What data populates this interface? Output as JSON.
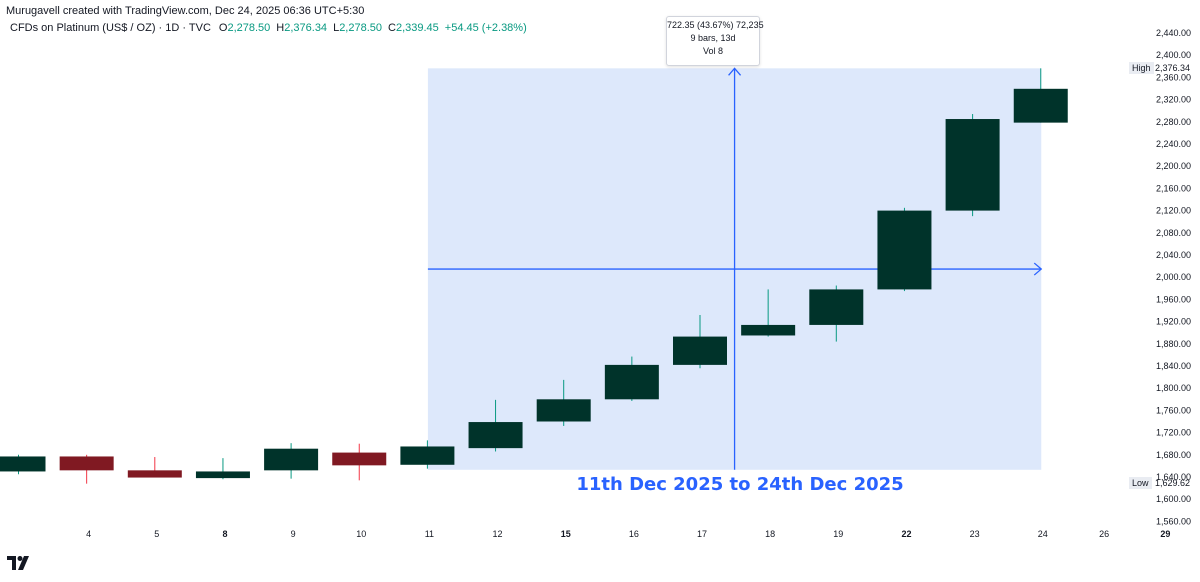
{
  "header": {
    "credit": "Murugavell created with TradingView.com, Dec 24, 2025 06:36 UTC+5:30",
    "symbol": "CFDs on Platinum (US$ / OZ) · 1D · TVC",
    "open_key": "O",
    "open_value": "2,278.50",
    "high_key": "H",
    "high_value": "2,376.34",
    "low_key": "L",
    "low_value": "2,278.50",
    "close_key": "C",
    "close_value": "2,339.45",
    "change": "+54.45 (+2.38%)"
  },
  "measure_tooltip": {
    "line1": "722.35 (43.67%) 72,235",
    "line2": "9 bars, 13d",
    "line3": "Vol 8"
  },
  "range_caption": "11th Dec 2025 to 24th Dec 2025",
  "price_scale": {
    "high_label": "High",
    "high_value": "2,376.34",
    "low_label": "Low",
    "low_value": "1,629.62"
  },
  "colors": {
    "up": "#00332a",
    "down": "#801922",
    "up_wick": "#089981",
    "down_wick": "#f23645",
    "measure_fill": "#dde8fb",
    "measure_line": "#2962ff",
    "axis_text": "#131722"
  },
  "chart_data": {
    "type": "candlestick",
    "ylim": [
      1540,
      2460
    ],
    "y_ticks": [
      "2,440.00",
      "2,400.00",
      "2,360.00",
      "2,320.00",
      "2,280.00",
      "2,240.00",
      "2,200.00",
      "2,160.00",
      "2,120.00",
      "2,080.00",
      "2,040.00",
      "2,000.00",
      "1,960.00",
      "1,920.00",
      "1,880.00",
      "1,840.00",
      "1,800.00",
      "1,760.00",
      "1,720.00",
      "1,680.00",
      "1,640.00",
      "1,600.00",
      "1,560.00"
    ],
    "x_ticks": [
      {
        "label": "4",
        "bold": false
      },
      {
        "label": "5",
        "bold": false
      },
      {
        "label": "8",
        "bold": true
      },
      {
        "label": "9",
        "bold": false
      },
      {
        "label": "10",
        "bold": false
      },
      {
        "label": "11",
        "bold": false
      },
      {
        "label": "12",
        "bold": false
      },
      {
        "label": "15",
        "bold": true
      },
      {
        "label": "16",
        "bold": false
      },
      {
        "label": "17",
        "bold": false
      },
      {
        "label": "18",
        "bold": false
      },
      {
        "label": "19",
        "bold": false
      },
      {
        "label": "22",
        "bold": true
      },
      {
        "label": "23",
        "bold": false
      },
      {
        "label": "24",
        "bold": false
      },
      {
        "label": "26",
        "bold": false
      },
      {
        "label": "29",
        "bold": true
      }
    ],
    "candles": [
      {
        "date": "3",
        "open": 1650,
        "high": 1680,
        "low": 1645,
        "close": 1677
      },
      {
        "date": "4",
        "open": 1677,
        "high": 1680,
        "low": 1628,
        "close": 1652
      },
      {
        "date": "5",
        "open": 1652,
        "high": 1676,
        "low": 1640,
        "close": 1639
      },
      {
        "date": "8",
        "open": 1638,
        "high": 1674,
        "low": 1636,
        "close": 1650
      },
      {
        "date": "9",
        "open": 1652,
        "high": 1701,
        "low": 1637,
        "close": 1691
      },
      {
        "date": "10",
        "open": 1684,
        "high": 1700,
        "low": 1634,
        "close": 1661
      },
      {
        "date": "11",
        "open": 1662,
        "high": 1706,
        "low": 1655,
        "close": 1695
      },
      {
        "date": "12",
        "open": 1692,
        "high": 1779,
        "low": 1686,
        "close": 1739
      },
      {
        "date": "15",
        "open": 1740,
        "high": 1815,
        "low": 1732,
        "close": 1780
      },
      {
        "date": "16",
        "open": 1780,
        "high": 1857,
        "low": 1777,
        "close": 1842
      },
      {
        "date": "17",
        "open": 1842,
        "high": 1932,
        "low": 1836,
        "close": 1893
      },
      {
        "date": "18",
        "open": 1895,
        "high": 1978,
        "low": 1893,
        "close": 1914
      },
      {
        "date": "19",
        "open": 1914,
        "high": 1985,
        "low": 1884,
        "close": 1978
      },
      {
        "date": "22",
        "open": 1978,
        "high": 2125,
        "low": 1975,
        "close": 2120
      },
      {
        "date": "23",
        "open": 2120,
        "high": 2294,
        "low": 2110,
        "close": 2285
      },
      {
        "date": "24",
        "open": 2278.5,
        "high": 2376.34,
        "low": 2278.5,
        "close": 2339.45
      }
    ],
    "measure": {
      "from_date": "11",
      "to_date": "24",
      "low": 1653,
      "high": 2376.34
    }
  }
}
